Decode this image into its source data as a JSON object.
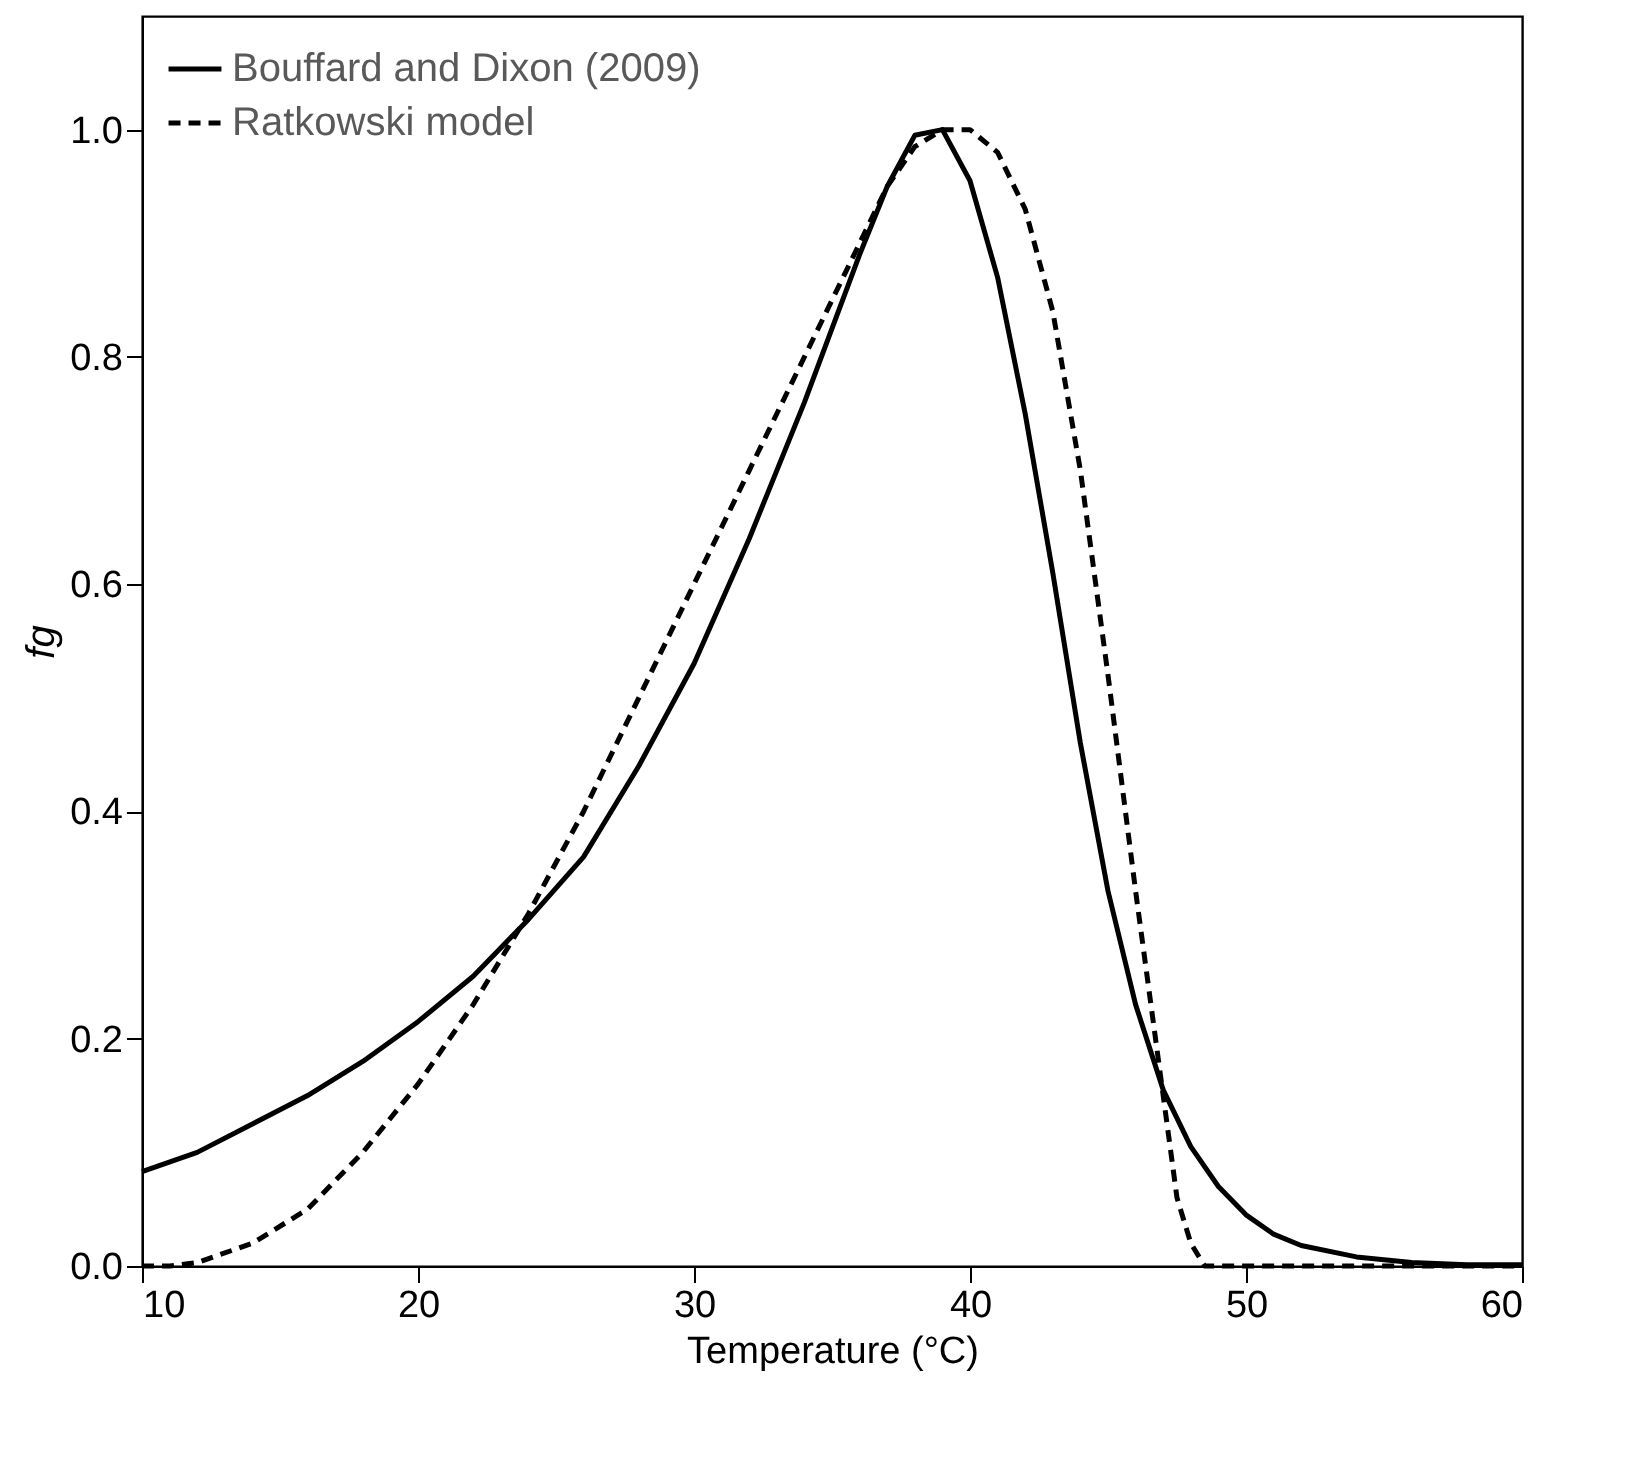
{
  "chart_data": {
    "type": "line",
    "xlabel": "Temperature  (°C)",
    "ylabel": "fg",
    "xlim": [
      10,
      60
    ],
    "xticks": [
      10,
      20,
      30,
      40,
      50,
      60
    ],
    "ylim": [
      0,
      1.1
    ],
    "yticks": [
      {
        "value": 0,
        "label": "0.0"
      },
      {
        "value": 0.2,
        "label": "0.2"
      },
      {
        "value": 0.4,
        "label": "0.4"
      },
      {
        "value": 0.6,
        "label": "0.6"
      },
      {
        "value": 0.8,
        "label": "0.8"
      },
      {
        "value": 1.0,
        "label": "1.0"
      }
    ],
    "grid": false,
    "legend": "top left",
    "marker": "none",
    "series": [
      {
        "name": "Bouffard and Dixon (2009)",
        "color": "#000000",
        "line_style": "solid",
        "x": [
          10,
          12,
          14,
          16,
          18,
          20,
          22,
          24,
          26,
          28,
          30,
          32,
          34,
          36,
          37,
          38,
          39,
          40,
          41,
          42,
          43,
          44,
          45,
          46,
          47,
          48,
          49,
          50,
          51,
          52,
          54,
          56,
          58,
          60
        ],
        "values": [
          0.083,
          0.1,
          0.125,
          0.15,
          0.18,
          0.215,
          0.255,
          0.305,
          0.36,
          0.44,
          0.53,
          0.64,
          0.76,
          0.89,
          0.95,
          0.995,
          1.0,
          0.955,
          0.87,
          0.75,
          0.61,
          0.46,
          0.33,
          0.23,
          0.155,
          0.105,
          0.07,
          0.045,
          0.028,
          0.018,
          0.008,
          0.003,
          0.001,
          0.001
        ]
      },
      {
        "name": "Ratkowski model",
        "color": "#000000",
        "line_style": "dashed",
        "x": [
          10,
          11,
          12,
          14,
          16,
          18,
          20,
          22,
          24,
          26,
          28,
          30,
          32,
          34,
          36,
          37,
          38,
          39,
          40,
          41,
          42,
          43,
          44,
          45,
          46,
          47,
          47.5,
          48,
          48.5,
          50,
          60
        ],
        "values": [
          0,
          0,
          0.003,
          0.02,
          0.05,
          0.1,
          0.16,
          0.23,
          0.31,
          0.4,
          0.5,
          0.6,
          0.7,
          0.8,
          0.9,
          0.95,
          0.985,
          1.0,
          1.0,
          0.98,
          0.93,
          0.84,
          0.7,
          0.52,
          0.33,
          0.15,
          0.06,
          0.02,
          0,
          0,
          0
        ]
      }
    ]
  }
}
